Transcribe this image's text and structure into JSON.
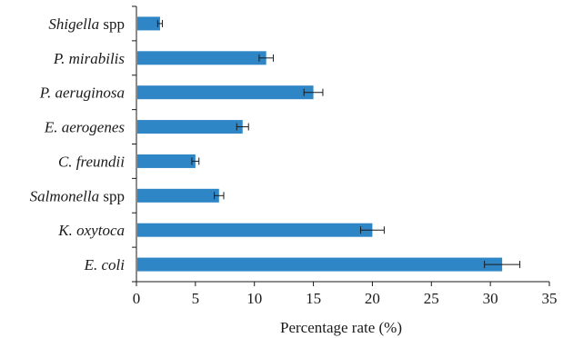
{
  "chart_data": {
    "type": "bar",
    "orientation": "horizontal",
    "categories": [
      {
        "italic": "Shigella",
        "rest": " spp"
      },
      {
        "italic": "P. mirabilis",
        "rest": ""
      },
      {
        "italic": "P. aeruginosa",
        "rest": ""
      },
      {
        "italic": "E. aerogenes",
        "rest": ""
      },
      {
        "italic": "C. freundii",
        "rest": ""
      },
      {
        "italic": "Salmonella",
        "rest": " spp"
      },
      {
        "italic": "K. oxytoca",
        "rest": ""
      },
      {
        "italic": "E. coli",
        "rest": ""
      }
    ],
    "values": [
      2,
      11,
      15,
      9,
      5,
      7,
      20,
      31
    ],
    "errors": [
      0.2,
      0.6,
      0.8,
      0.5,
      0.3,
      0.4,
      1.0,
      1.5
    ],
    "xlabel": "Percentage rate (%)",
    "xlim": [
      0,
      35
    ],
    "xticks": [
      0,
      5,
      10,
      15,
      20,
      25,
      30,
      35
    ],
    "bar_color": "#2f86c6",
    "grid": false
  }
}
